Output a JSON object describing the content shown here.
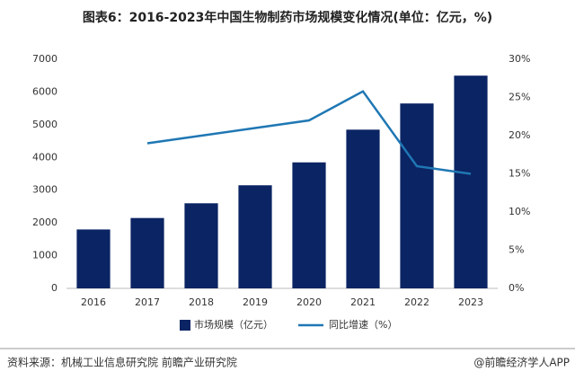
{
  "chart_data": {
    "type": "bar-line",
    "title": "图表6：2016-2023年中国生物制药市场规模变化情况(单位：亿元，%)",
    "categories": [
      "2016",
      "2017",
      "2018",
      "2019",
      "2020",
      "2021",
      "2022",
      "2023"
    ],
    "series": [
      {
        "name": "市场规模（亿元）",
        "type": "bar",
        "color": "#0b2463",
        "values": [
          1800,
          2150,
          2600,
          3150,
          3850,
          4850,
          5650,
          6500
        ]
      },
      {
        "name": "同比增速（%）",
        "type": "line",
        "axis": "y2",
        "color": "#1f77b4",
        "values": [
          null,
          19,
          20,
          21,
          22,
          25.8,
          16,
          15
        ]
      }
    ],
    "ylim": [
      0,
      7000
    ],
    "yticks": [
      0,
      1000,
      2000,
      3000,
      4000,
      5000,
      6000,
      7000
    ],
    "y2lim": [
      0,
      30
    ],
    "y2ticks": [
      {
        "value": 0,
        "label": "0%"
      },
      {
        "value": 5,
        "label": "5%"
      },
      {
        "value": 10,
        "label": "10%"
      },
      {
        "value": 15,
        "label": "15%"
      },
      {
        "value": 20,
        "label": "20%"
      },
      {
        "value": 25,
        "label": "25%"
      },
      {
        "value": 30,
        "label": "30%"
      }
    ],
    "source": "资料来源：机械工业信息研究院 前瞻产业研究院",
    "credit": "@前瞻经济学人APP"
  }
}
